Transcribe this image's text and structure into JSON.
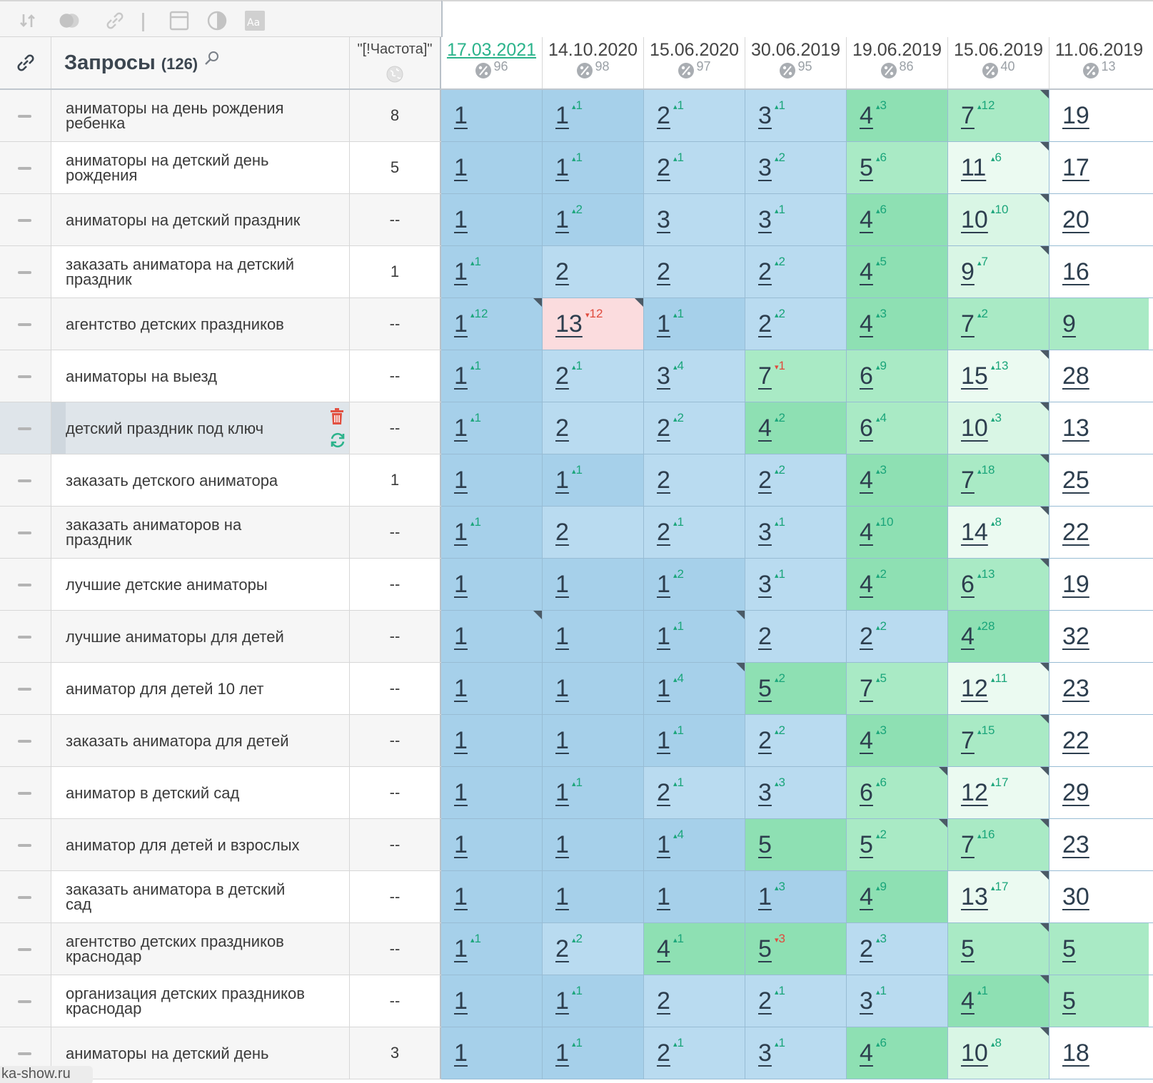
{
  "toolbar": {
    "icons": [
      "sort-icon",
      "toggle-icon",
      "link-icon",
      "window-icon",
      "contrast-icon",
      "font-icon"
    ]
  },
  "header": {
    "queries_label": "Запросы",
    "queries_count": "(126)",
    "frequency_label": "\"[!Частота]\"",
    "columns": [
      {
        "date": "17.03.2021",
        "pct": "96",
        "active": true
      },
      {
        "date": "14.10.2020",
        "pct": "98"
      },
      {
        "date": "15.06.2020",
        "pct": "97"
      },
      {
        "date": "30.06.2019",
        "pct": "95"
      },
      {
        "date": "19.06.2019",
        "pct": "86"
      },
      {
        "date": "15.06.2019",
        "pct": "40"
      },
      {
        "date": "11.06.2019",
        "pct": "13"
      }
    ]
  },
  "rows": [
    {
      "q": "аниматоры на день рождения ребенка",
      "f": "8",
      "cells": [
        [
          "1",
          "",
          ""
        ],
        [
          "1",
          "1",
          "up"
        ],
        [
          "2",
          "1",
          "up"
        ],
        [
          "3",
          "1",
          "up"
        ],
        [
          "4",
          "3",
          "up"
        ],
        [
          "7",
          "12",
          "up"
        ],
        [
          "19",
          "",
          ""
        ]
      ]
    },
    {
      "q": "аниматоры на детский день рождения",
      "f": "5",
      "cells": [
        [
          "1",
          "",
          ""
        ],
        [
          "1",
          "1",
          "up"
        ],
        [
          "2",
          "1",
          "up"
        ],
        [
          "3",
          "2",
          "up"
        ],
        [
          "5",
          "6",
          "up"
        ],
        [
          "11",
          "6",
          "up"
        ],
        [
          "17",
          "",
          ""
        ]
      ]
    },
    {
      "q": "аниматоры на детский праздник",
      "f": "--",
      "cells": [
        [
          "1",
          "",
          ""
        ],
        [
          "1",
          "2",
          "up"
        ],
        [
          "3",
          "",
          ""
        ],
        [
          "3",
          "1",
          "up"
        ],
        [
          "4",
          "6",
          "up"
        ],
        [
          "10",
          "10",
          "up"
        ],
        [
          "20",
          "",
          ""
        ]
      ]
    },
    {
      "q": "заказать аниматора на детский праздник",
      "f": "1",
      "cells": [
        [
          "1",
          "1",
          "up"
        ],
        [
          "2",
          "",
          ""
        ],
        [
          "2",
          "",
          ""
        ],
        [
          "2",
          "2",
          "up"
        ],
        [
          "4",
          "5",
          "up"
        ],
        [
          "9",
          "7",
          "up"
        ],
        [
          "16",
          "",
          ""
        ]
      ]
    },
    {
      "q": "агентство детских праздников",
      "f": "--",
      "cells": [
        [
          "1",
          "12",
          "up"
        ],
        [
          "13",
          "12",
          "dn"
        ],
        [
          "1",
          "1",
          "up"
        ],
        [
          "2",
          "2",
          "up"
        ],
        [
          "4",
          "3",
          "up"
        ],
        [
          "7",
          "2",
          "up"
        ],
        [
          "9",
          "",
          ""
        ]
      ]
    },
    {
      "q": "аниматоры на выезд",
      "f": "--",
      "cells": [
        [
          "1",
          "1",
          "up"
        ],
        [
          "2",
          "1",
          "up"
        ],
        [
          "3",
          "4",
          "up"
        ],
        [
          "7",
          "1",
          "dn"
        ],
        [
          "6",
          "9",
          "up"
        ],
        [
          "15",
          "13",
          "up"
        ],
        [
          "28",
          "",
          ""
        ]
      ]
    },
    {
      "q": "детский праздник под ключ",
      "f": "--",
      "cells": [
        [
          "1",
          "1",
          "up"
        ],
        [
          "2",
          "",
          ""
        ],
        [
          "2",
          "2",
          "up"
        ],
        [
          "4",
          "2",
          "up"
        ],
        [
          "6",
          "4",
          "up"
        ],
        [
          "10",
          "3",
          "up"
        ],
        [
          "13",
          "",
          ""
        ]
      ]
    },
    {
      "q": "заказать детского аниматора",
      "f": "1",
      "cells": [
        [
          "1",
          "",
          ""
        ],
        [
          "1",
          "1",
          "up"
        ],
        [
          "2",
          "",
          ""
        ],
        [
          "2",
          "2",
          "up"
        ],
        [
          "4",
          "3",
          "up"
        ],
        [
          "7",
          "18",
          "up"
        ],
        [
          "25",
          "",
          ""
        ]
      ]
    },
    {
      "q": "заказать аниматоров на праздник",
      "f": "--",
      "cells": [
        [
          "1",
          "1",
          "up"
        ],
        [
          "2",
          "",
          ""
        ],
        [
          "2",
          "1",
          "up"
        ],
        [
          "3",
          "1",
          "up"
        ],
        [
          "4",
          "10",
          "up"
        ],
        [
          "14",
          "8",
          "up"
        ],
        [
          "22",
          "",
          ""
        ]
      ]
    },
    {
      "q": "лучшие детские аниматоры",
      "f": "--",
      "cells": [
        [
          "1",
          "",
          ""
        ],
        [
          "1",
          "",
          ""
        ],
        [
          "1",
          "2",
          "up"
        ],
        [
          "3",
          "1",
          "up"
        ],
        [
          "4",
          "2",
          "up"
        ],
        [
          "6",
          "13",
          "up"
        ],
        [
          "19",
          "",
          ""
        ]
      ]
    },
    {
      "q": "лучшие аниматоры для детей",
      "f": "--",
      "cells": [
        [
          "1",
          "",
          ""
        ],
        [
          "1",
          "",
          ""
        ],
        [
          "1",
          "1",
          "up"
        ],
        [
          "2",
          "",
          ""
        ],
        [
          "2",
          "2",
          "up"
        ],
        [
          "4",
          "28",
          "up"
        ],
        [
          "32",
          "",
          ""
        ]
      ]
    },
    {
      "q": "аниматор для детей 10 лет",
      "f": "--",
      "cells": [
        [
          "1",
          "",
          ""
        ],
        [
          "1",
          "",
          ""
        ],
        [
          "1",
          "4",
          "up"
        ],
        [
          "5",
          "2",
          "up"
        ],
        [
          "7",
          "5",
          "up"
        ],
        [
          "12",
          "11",
          "up"
        ],
        [
          "23",
          "",
          ""
        ]
      ]
    },
    {
      "q": "заказать аниматора для детей",
      "f": "--",
      "cells": [
        [
          "1",
          "",
          ""
        ],
        [
          "1",
          "",
          ""
        ],
        [
          "1",
          "1",
          "up"
        ],
        [
          "2",
          "2",
          "up"
        ],
        [
          "4",
          "3",
          "up"
        ],
        [
          "7",
          "15",
          "up"
        ],
        [
          "22",
          "",
          ""
        ]
      ]
    },
    {
      "q": "аниматор в детский сад",
      "f": "--",
      "cells": [
        [
          "1",
          "",
          ""
        ],
        [
          "1",
          "1",
          "up"
        ],
        [
          "2",
          "1",
          "up"
        ],
        [
          "3",
          "3",
          "up"
        ],
        [
          "6",
          "6",
          "up"
        ],
        [
          "12",
          "17",
          "up"
        ],
        [
          "29",
          "",
          ""
        ]
      ]
    },
    {
      "q": "аниматор для детей и взрослых",
      "f": "--",
      "cells": [
        [
          "1",
          "",
          ""
        ],
        [
          "1",
          "",
          ""
        ],
        [
          "1",
          "4",
          "up"
        ],
        [
          "5",
          "",
          ""
        ],
        [
          "5",
          "2",
          "up"
        ],
        [
          "7",
          "16",
          "up"
        ],
        [
          "23",
          "",
          ""
        ]
      ]
    },
    {
      "q": "заказать аниматора в детский сад",
      "f": "--",
      "cells": [
        [
          "1",
          "",
          ""
        ],
        [
          "1",
          "",
          ""
        ],
        [
          "1",
          "",
          ""
        ],
        [
          "1",
          "3",
          "up"
        ],
        [
          "4",
          "9",
          "up"
        ],
        [
          "13",
          "17",
          "up"
        ],
        [
          "30",
          "",
          ""
        ]
      ]
    },
    {
      "q": "агентство детских праздников краснодар",
      "f": "--",
      "cells": [
        [
          "1",
          "1",
          "up"
        ],
        [
          "2",
          "2",
          "up"
        ],
        [
          "4",
          "1",
          "up"
        ],
        [
          "5",
          "3",
          "dn"
        ],
        [
          "2",
          "3",
          "up"
        ],
        [
          "5",
          "",
          ""
        ],
        [
          "5",
          "",
          ""
        ]
      ]
    },
    {
      "q": "организация детских праздников краснодар",
      "f": "--",
      "cells": [
        [
          "1",
          "",
          ""
        ],
        [
          "1",
          "1",
          "up"
        ],
        [
          "2",
          "",
          ""
        ],
        [
          "2",
          "1",
          "up"
        ],
        [
          "3",
          "1",
          "up"
        ],
        [
          "4",
          "1",
          "up"
        ],
        [
          "5",
          "",
          ""
        ]
      ]
    },
    {
      "q": "аниматоры на детский день",
      "f": "3",
      "cells": [
        [
          "1",
          "",
          ""
        ],
        [
          "1",
          "1",
          "up"
        ],
        [
          "2",
          "1",
          "up"
        ],
        [
          "3",
          "1",
          "up"
        ],
        [
          "4",
          "6",
          "up"
        ],
        [
          "10",
          "8",
          "up"
        ],
        [
          "18",
          "",
          ""
        ]
      ]
    }
  ],
  "footer_tag": "ka-show.ru",
  "colors": {
    "blue_dark": "#a6d0ea",
    "blue_light": "#b9dbf0",
    "green_dark": "#8ee0b3",
    "green_mid": "#a9eac5",
    "green_light": "#d9f6e5",
    "green_pale": "#ebfaf1",
    "red_light": "#fbdcde",
    "accent": "#2bb38b"
  }
}
